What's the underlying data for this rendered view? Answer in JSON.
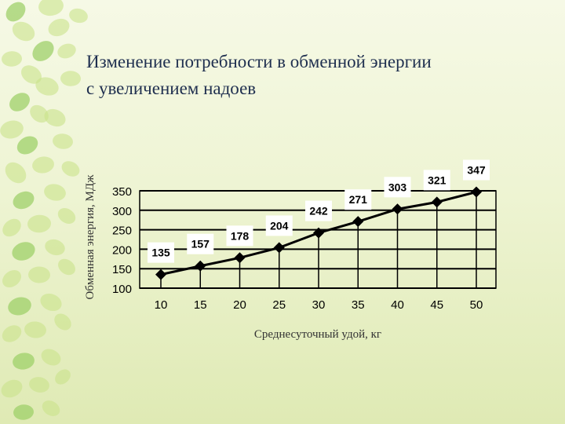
{
  "slide": {
    "title_line1": "Изменение потребности в обменной энергии",
    "title_line2": "с увеличением надоев"
  },
  "chart_data": {
    "type": "line",
    "title": "Изменение потребности в обменной энергии с увеличением надоев",
    "xlabel": "Среднесуточный удой, кг",
    "ylabel": "Обменная энергия, МДж",
    "x": [
      10,
      15,
      20,
      25,
      30,
      35,
      40,
      45,
      50
    ],
    "values": [
      135,
      157,
      178,
      204,
      242,
      271,
      303,
      321,
      347
    ],
    "ylim": [
      100,
      350
    ],
    "yticks": [
      100,
      150,
      200,
      250,
      300,
      350
    ],
    "xticks": [
      10,
      15,
      20,
      25,
      30,
      35,
      40,
      45,
      50
    ],
    "grid": "horizontal",
    "marker": "diamond",
    "data_labels": true,
    "colors": {
      "line": "#000000",
      "label_box": "#ffffff"
    }
  }
}
